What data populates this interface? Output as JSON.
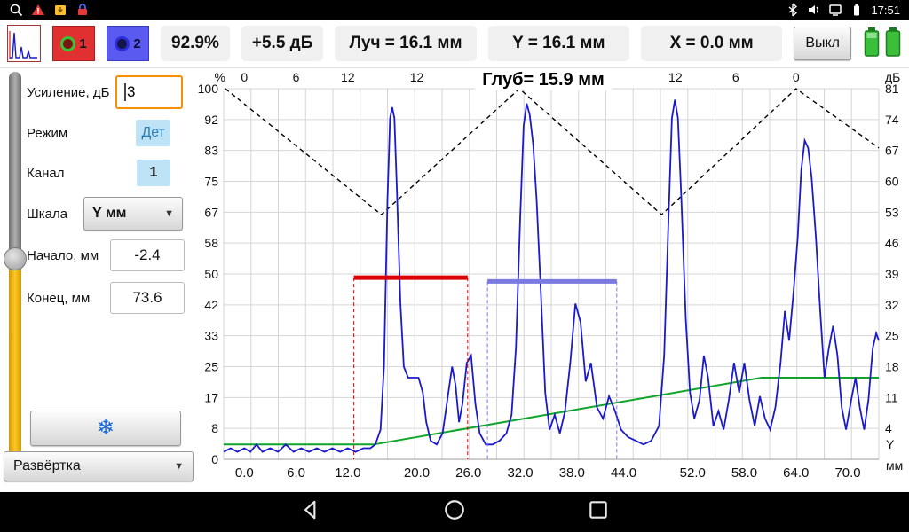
{
  "status_bar": {
    "time": "17:51"
  },
  "toolbar": {
    "channel1": "1",
    "channel2": "2",
    "amplitude": "92.9%",
    "gain": "+5.5 дБ",
    "beam": "Луч = 16.1 мм",
    "y": "Y = 16.1 мм",
    "x": "X = 0.0 мм",
    "power": "Выкл"
  },
  "sidebar": {
    "gain_label": "Усиление, дБ",
    "gain_value": "3",
    "mode_label": "Режим",
    "mode_value": "Дет",
    "channel_label": "Канал",
    "channel_value": "1",
    "scale_label": "Шкала",
    "scale_value": "Y мм",
    "start_label": "Начало, мм",
    "start_value": "-2.4",
    "end_label": "Конец, мм",
    "end_value": "73.6",
    "sweep_label": "Развёртка"
  },
  "icons": {
    "chevron": "▼",
    "freeze": "❄"
  },
  "chart_data": {
    "type": "line",
    "title": "Глуб= 15.9 мм",
    "x_range": [
      -2.4,
      73.6
    ],
    "y_range": [
      0,
      100
    ],
    "left_axis_unit": "%",
    "right_axis_unit": "дБ",
    "right_axis_bottom": [
      "Y",
      "мм"
    ],
    "left_ticks": [
      100,
      92,
      83,
      75,
      67,
      58,
      50,
      42,
      33,
      25,
      17,
      8,
      0
    ],
    "right_ticks": [
      81,
      74,
      67,
      60,
      53,
      46,
      39,
      32,
      25,
      18,
      11,
      4
    ],
    "top_ticks": [
      {
        "label": "0",
        "x": 0
      },
      {
        "label": "6",
        "x": 6
      },
      {
        "label": "12",
        "x": 12
      },
      {
        "label": "12",
        "x": 20
      },
      {
        "label": "12",
        "x": 50
      },
      {
        "label": "6",
        "x": 57
      },
      {
        "label": "0",
        "x": 64
      }
    ],
    "bottom_ticks": [
      0,
      6,
      12,
      20,
      26,
      32,
      38,
      44,
      52,
      58,
      64,
      70
    ],
    "series": [
      {
        "name": "skip-path",
        "color": "#000000",
        "style": "dashed",
        "width": 1.4,
        "points": [
          [
            -2.2,
            100
          ],
          [
            15.9,
            66
          ],
          [
            31.9,
            100
          ],
          [
            48.4,
            66
          ],
          [
            64,
            100
          ],
          [
            73.6,
            84
          ]
        ]
      },
      {
        "name": "tcg-curve",
        "color": "#0fa52a",
        "style": "solid",
        "width": 2,
        "points": [
          [
            -2.4,
            4
          ],
          [
            15,
            4
          ],
          [
            60,
            22
          ],
          [
            73.6,
            22
          ]
        ]
      },
      {
        "name": "a-scan",
        "color": "#1a1acc",
        "style": "solid",
        "width": 1.8,
        "points": [
          [
            -2.4,
            2
          ],
          [
            -1.6,
            3
          ],
          [
            -0.8,
            2
          ],
          [
            0,
            3
          ],
          [
            0.7,
            2
          ],
          [
            1.4,
            4
          ],
          [
            2.1,
            2
          ],
          [
            3,
            3
          ],
          [
            3.9,
            2
          ],
          [
            4.8,
            4
          ],
          [
            5.7,
            2
          ],
          [
            6.6,
            3
          ],
          [
            7.5,
            2
          ],
          [
            8.4,
            3
          ],
          [
            9.3,
            2
          ],
          [
            10.2,
            3
          ],
          [
            11.1,
            2
          ],
          [
            12,
            3
          ],
          [
            12.9,
            2
          ],
          [
            13.8,
            3
          ],
          [
            14.6,
            3
          ],
          [
            15.2,
            4
          ],
          [
            15.8,
            8
          ],
          [
            16.2,
            25
          ],
          [
            16.6,
            70
          ],
          [
            16.9,
            92
          ],
          [
            17.15,
            95
          ],
          [
            17.4,
            92
          ],
          [
            17.7,
            72
          ],
          [
            18.1,
            42
          ],
          [
            18.5,
            25
          ],
          [
            19,
            22
          ],
          [
            19.6,
            22
          ],
          [
            20.2,
            22
          ],
          [
            20.7,
            18
          ],
          [
            21.1,
            10
          ],
          [
            21.6,
            5
          ],
          [
            22.3,
            4
          ],
          [
            23,
            7
          ],
          [
            23.6,
            17
          ],
          [
            24.1,
            25
          ],
          [
            24.5,
            20
          ],
          [
            24.9,
            10
          ],
          [
            25.3,
            15
          ],
          [
            25.8,
            26
          ],
          [
            26.3,
            28
          ],
          [
            26.8,
            15
          ],
          [
            27.3,
            7
          ],
          [
            28,
            4
          ],
          [
            28.8,
            4
          ],
          [
            29.6,
            5
          ],
          [
            30.4,
            7
          ],
          [
            31,
            12
          ],
          [
            31.5,
            30
          ],
          [
            32,
            65
          ],
          [
            32.4,
            90
          ],
          [
            32.75,
            96
          ],
          [
            33.1,
            93
          ],
          [
            33.5,
            85
          ],
          [
            33.9,
            70
          ],
          [
            34.4,
            45
          ],
          [
            34.9,
            18
          ],
          [
            35.4,
            8
          ],
          [
            36,
            12
          ],
          [
            36.6,
            7
          ],
          [
            37.2,
            13
          ],
          [
            37.8,
            26
          ],
          [
            38.4,
            42
          ],
          [
            39,
            37
          ],
          [
            39.6,
            21
          ],
          [
            40.2,
            26
          ],
          [
            40.9,
            14
          ],
          [
            41.6,
            11
          ],
          [
            42.3,
            17
          ],
          [
            43,
            13
          ],
          [
            43.7,
            8
          ],
          [
            44.5,
            6
          ],
          [
            45.4,
            5
          ],
          [
            46.3,
            4
          ],
          [
            47.2,
            5
          ],
          [
            48.1,
            9
          ],
          [
            48.7,
            28
          ],
          [
            49.2,
            65
          ],
          [
            49.6,
            92
          ],
          [
            49.95,
            97
          ],
          [
            50.3,
            92
          ],
          [
            50.7,
            70
          ],
          [
            51.2,
            38
          ],
          [
            51.7,
            18
          ],
          [
            52.2,
            11
          ],
          [
            52.8,
            16
          ],
          [
            53.3,
            28
          ],
          [
            53.8,
            22
          ],
          [
            54.4,
            9
          ],
          [
            55,
            13
          ],
          [
            55.6,
            8
          ],
          [
            56.2,
            16
          ],
          [
            56.8,
            26
          ],
          [
            57.4,
            18
          ],
          [
            58,
            26
          ],
          [
            58.6,
            16
          ],
          [
            59.2,
            9
          ],
          [
            59.8,
            17
          ],
          [
            60.4,
            11
          ],
          [
            61,
            8
          ],
          [
            61.6,
            14
          ],
          [
            62.2,
            26
          ],
          [
            62.7,
            40
          ],
          [
            63.2,
            32
          ],
          [
            63.7,
            45
          ],
          [
            64.2,
            60
          ],
          [
            64.6,
            78
          ],
          [
            65,
            86
          ],
          [
            65.4,
            84
          ],
          [
            65.8,
            76
          ],
          [
            66.3,
            60
          ],
          [
            66.8,
            40
          ],
          [
            67.3,
            22
          ],
          [
            67.8,
            30
          ],
          [
            68.3,
            36
          ],
          [
            68.8,
            28
          ],
          [
            69.3,
            14
          ],
          [
            69.8,
            8
          ],
          [
            70.4,
            16
          ],
          [
            70.9,
            22
          ],
          [
            71.4,
            14
          ],
          [
            71.9,
            8
          ],
          [
            72.4,
            16
          ],
          [
            72.9,
            30
          ],
          [
            73.3,
            34
          ],
          [
            73.6,
            32
          ]
        ]
      }
    ],
    "gates": [
      {
        "name": "gate-1",
        "color": "#dd0000",
        "level": 49,
        "start": 12.7,
        "end": 25.9
      },
      {
        "name": "gate-2",
        "color": "#7a7ae0",
        "level": 48,
        "start": 28.2,
        "end": 43.2
      }
    ]
  }
}
